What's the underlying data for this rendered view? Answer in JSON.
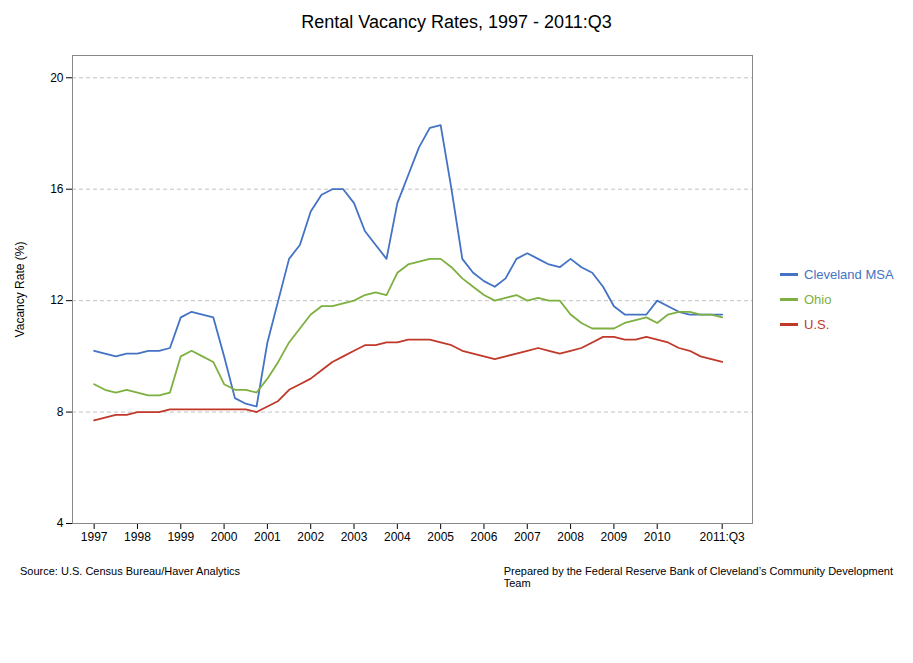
{
  "chart_data": {
    "type": "line",
    "title": "Rental Vacancy Rates, 1997 - 2011:Q3",
    "ylabel": "Vacancy Rate (%)",
    "annotations": [
      "Source: U.S. Census Bureau/Haver Analytics",
      "Prepared by the Federal Reserve Bank of Cleveland’s Community Development\nTeam"
    ],
    "x": [
      1997,
      1997.25,
      1997.5,
      1997.75,
      1998,
      1998.25,
      1998.5,
      1998.75,
      1999,
      1999.25,
      1999.5,
      1999.75,
      2000,
      2000.25,
      2000.5,
      2000.75,
      2001,
      2001.25,
      2001.5,
      2001.75,
      2002,
      2002.25,
      2002.5,
      2002.75,
      2003,
      2003.25,
      2003.5,
      2003.75,
      2004,
      2004.25,
      2004.5,
      2004.75,
      2005,
      2005.25,
      2005.5,
      2005.75,
      2006,
      2006.25,
      2006.5,
      2006.75,
      2007,
      2007.25,
      2007.5,
      2007.75,
      2008,
      2008.25,
      2008.5,
      2008.75,
      2009,
      2009.25,
      2009.5,
      2009.75,
      2010,
      2010.25,
      2010.5,
      2010.75,
      2011,
      2011.25,
      2011.5
    ],
    "xlim": [
      1996.5,
      2012.2
    ],
    "xticks": [
      1997,
      1998,
      1999,
      2000,
      2001,
      2002,
      2003,
      2004,
      2005,
      2006,
      2007,
      2008,
      2009,
      2010,
      {
        "value": 2011.5,
        "label": "2011:Q3"
      }
    ],
    "ylim": [
      4,
      20.8
    ],
    "yticks": [
      4,
      8,
      12,
      16,
      20
    ],
    "grid": true,
    "legend": "right",
    "series": [
      {
        "name": "Cleveland MSA",
        "color": "#4472c4",
        "values": [
          10.2,
          10.1,
          10.0,
          10.1,
          10.1,
          10.2,
          10.2,
          10.3,
          11.4,
          11.6,
          11.5,
          11.4,
          10.0,
          8.5,
          8.3,
          8.2,
          10.5,
          12.0,
          13.5,
          14.0,
          15.2,
          15.8,
          16.0,
          16.0,
          15.5,
          14.5,
          14.0,
          13.5,
          15.5,
          16.5,
          17.5,
          18.2,
          18.3,
          16.0,
          13.5,
          13.0,
          12.7,
          12.5,
          12.8,
          13.5,
          13.7,
          13.5,
          13.3,
          13.2,
          13.5,
          13.2,
          13.0,
          12.5,
          11.8,
          11.5,
          11.5,
          11.5,
          12.0,
          11.8,
          11.6,
          11.5,
          11.5,
          11.5,
          11.5
        ]
      },
      {
        "name": "Ohio",
        "color": "#7db040",
        "values": [
          9.0,
          8.8,
          8.7,
          8.8,
          8.7,
          8.6,
          8.6,
          8.7,
          10.0,
          10.2,
          10.0,
          9.8,
          9.0,
          8.8,
          8.8,
          8.7,
          9.2,
          9.8,
          10.5,
          11.0,
          11.5,
          11.8,
          11.8,
          11.9,
          12.0,
          12.2,
          12.3,
          12.2,
          13.0,
          13.3,
          13.4,
          13.5,
          13.5,
          13.2,
          12.8,
          12.5,
          12.2,
          12.0,
          12.1,
          12.2,
          12.0,
          12.1,
          12.0,
          12.0,
          11.5,
          11.2,
          11.0,
          11.0,
          11.0,
          11.2,
          11.3,
          11.4,
          11.2,
          11.5,
          11.6,
          11.6,
          11.5,
          11.5,
          11.4
        ]
      },
      {
        "name": "U.S.",
        "color": "#c0392b",
        "values": [
          7.7,
          7.8,
          7.9,
          7.9,
          8.0,
          8.0,
          8.0,
          8.1,
          8.1,
          8.1,
          8.1,
          8.1,
          8.1,
          8.1,
          8.1,
          8.0,
          8.2,
          8.4,
          8.8,
          9.0,
          9.2,
          9.5,
          9.8,
          10.0,
          10.2,
          10.4,
          10.4,
          10.5,
          10.5,
          10.6,
          10.6,
          10.6,
          10.5,
          10.4,
          10.2,
          10.1,
          10.0,
          9.9,
          10.0,
          10.1,
          10.2,
          10.3,
          10.2,
          10.1,
          10.2,
          10.3,
          10.5,
          10.7,
          10.7,
          10.6,
          10.6,
          10.7,
          10.6,
          10.5,
          10.3,
          10.2,
          10.0,
          9.9,
          9.8
        ]
      }
    ]
  }
}
